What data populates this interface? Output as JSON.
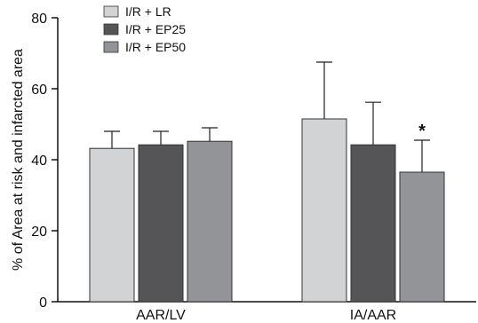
{
  "chart_data": {
    "type": "bar",
    "categories": [
      "AAR/LV",
      "IA/AAR"
    ],
    "series": [
      {
        "name": "I/R + LR",
        "values": [
          43.2,
          51.5
        ],
        "errors": [
          4.8,
          16.0
        ]
      },
      {
        "name": "I/R + EP25",
        "values": [
          44.2,
          44.2
        ],
        "errors": [
          3.8,
          12.0
        ]
      },
      {
        "name": "I/R + EP50",
        "values": [
          45.2,
          36.5
        ],
        "errors": [
          3.8,
          9.0
        ]
      }
    ],
    "ylabel": "% of Area at risk and infarcted area",
    "ylim": [
      0,
      80
    ],
    "yticks": [
      0,
      20,
      40,
      60,
      80
    ],
    "legend_position": "top-left",
    "grid": false,
    "annotations": [
      {
        "text": "*",
        "category": "IA/AAR",
        "series": "I/R + EP50"
      }
    ],
    "colors": {
      "I/R + LR": "#d2d3d5",
      "I/R + EP25": "#555558",
      "I/R + EP50": "#929497"
    }
  }
}
